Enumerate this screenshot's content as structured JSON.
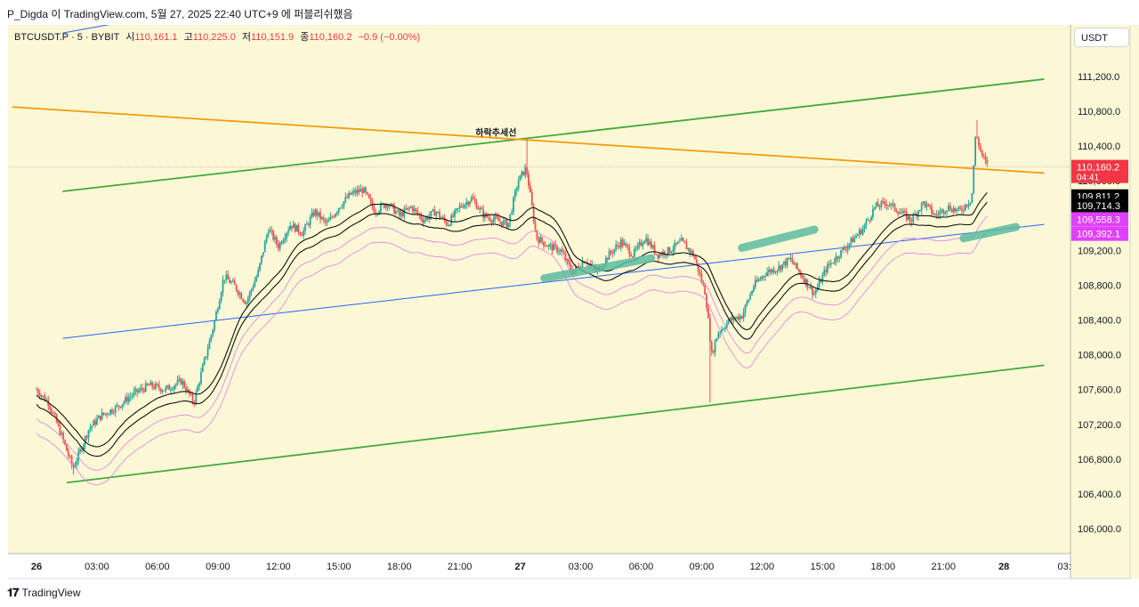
{
  "header": {
    "text": "P_Digda 이 TradingView.com, 5월 27, 2025 22:40 UTC+9 에 퍼블리쉬했음"
  },
  "legend": {
    "symbol": "BTCUSDT.P · 5 · BYBIT",
    "open_label": "시",
    "open": "110,161.1",
    "high_label": "고",
    "high": "110,225.0",
    "low_label": "저",
    "low": "110,151.9",
    "close_label": "종",
    "close": "110,160.2",
    "change": "−0.9 (−0.00%)"
  },
  "currency": "USDT",
  "annotation_text": "하락추세선",
  "footer": {
    "brand": "TradingView",
    "logo": "𝟏𝟕"
  },
  "colors": {
    "background": "#fcf8d6",
    "up": "#26a69a",
    "down": "#ef5350",
    "green_line": "#43a83b",
    "orange_line": "#f39c12",
    "blue_line": "#2962ff",
    "highlight": "#5dbb9f",
    "vwap": "#111111",
    "band": "#e07ae6",
    "last_price": "#f23645"
  },
  "chart_data": {
    "type": "candlestick",
    "price_axis": {
      "ticks": [
        106000,
        106400,
        106800,
        107200,
        107600,
        108000,
        108400,
        108800,
        109200,
        109600,
        110000,
        110400,
        110800,
        111200
      ],
      "tick_labels": [
        "106,000.0",
        "106,400.0",
        "106,800.0",
        "107,200.0",
        "107,600.0",
        "108,000.0",
        "108,400.0",
        "108,800.0",
        "109,200.0",
        "109,600.0",
        "110,000.0",
        "110,400.0",
        "110,800.0",
        "111,200.0"
      ],
      "ylim": [
        105800,
        111450
      ]
    },
    "time_axis": {
      "labels": [
        "26",
        "03:00",
        "06:00",
        "09:00",
        "12:00",
        "15:00",
        "18:00",
        "21:00",
        "27",
        "03:00",
        "06:00",
        "09:00",
        "12:00",
        "15:00",
        "18:00",
        "21:00",
        "28",
        "03:"
      ],
      "bold": [
        true,
        false,
        false,
        false,
        false,
        false,
        false,
        false,
        true,
        false,
        false,
        false,
        false,
        false,
        false,
        false,
        true,
        false
      ],
      "hours": [
        0,
        3,
        6,
        9,
        12,
        15,
        18,
        21,
        24,
        27,
        30,
        33,
        36,
        39,
        42,
        45,
        48,
        51
      ]
    },
    "price_tags": [
      {
        "label": "110,160.2",
        "sub": "04:41",
        "price": 110160,
        "bg": "#f23645",
        "fg": "#ffffff"
      },
      {
        "label": "109,811.2",
        "price": 109811,
        "bg": "#000000",
        "fg": "#ffffff"
      },
      {
        "label": "109,714.3",
        "price": 109714,
        "bg": "#000000",
        "fg": "#ffffff"
      },
      {
        "label": "109,558.3",
        "price": 109558,
        "bg": "#e040fb",
        "fg": "#ffffff"
      },
      {
        "label": "109,392.1",
        "price": 109392,
        "bg": "#e040fb",
        "fg": "#ffffff"
      }
    ],
    "close_path": [
      [
        0,
        107600
      ],
      [
        0.6,
        107450
      ],
      [
        1.2,
        107100
      ],
      [
        1.8,
        106700
      ],
      [
        2.1,
        106850
      ],
      [
        2.6,
        107150
      ],
      [
        3.2,
        107300
      ],
      [
        4.0,
        107400
      ],
      [
        4.8,
        107550
      ],
      [
        5.6,
        107650
      ],
      [
        6.4,
        107600
      ],
      [
        7.2,
        107700
      ],
      [
        7.8,
        107450
      ],
      [
        8.3,
        107900
      ],
      [
        8.8,
        108350
      ],
      [
        9.3,
        108900
      ],
      [
        9.8,
        108800
      ],
      [
        10.4,
        108600
      ],
      [
        11.0,
        108950
      ],
      [
        11.5,
        109450
      ],
      [
        12.0,
        109250
      ],
      [
        12.6,
        109500
      ],
      [
        13.2,
        109400
      ],
      [
        13.8,
        109650
      ],
      [
        14.4,
        109500
      ],
      [
        15.0,
        109700
      ],
      [
        15.6,
        109850
      ],
      [
        16.2,
        109900
      ],
      [
        16.8,
        109650
      ],
      [
        17.4,
        109750
      ],
      [
        18.0,
        109600
      ],
      [
        18.6,
        109700
      ],
      [
        19.2,
        109550
      ],
      [
        19.8,
        109650
      ],
      [
        20.4,
        109500
      ],
      [
        21.0,
        109700
      ],
      [
        21.6,
        109800
      ],
      [
        22.2,
        109600
      ],
      [
        22.8,
        109550
      ],
      [
        23.4,
        109500
      ],
      [
        23.9,
        110000
      ],
      [
        24.3,
        110150
      ],
      [
        24.8,
        109350
      ],
      [
        25.4,
        109250
      ],
      [
        26.0,
        109200
      ],
      [
        26.6,
        108950
      ],
      [
        27.2,
        109100
      ],
      [
        27.8,
        108950
      ],
      [
        28.4,
        109150
      ],
      [
        29.0,
        109300
      ],
      [
        29.6,
        109150
      ],
      [
        30.2,
        109350
      ],
      [
        30.8,
        109150
      ],
      [
        31.4,
        109200
      ],
      [
        32.0,
        109300
      ],
      [
        32.6,
        109150
      ],
      [
        33.2,
        108700
      ],
      [
        33.5,
        108000
      ],
      [
        33.8,
        108250
      ],
      [
        34.4,
        108400
      ],
      [
        35.0,
        108450
      ],
      [
        35.6,
        108800
      ],
      [
        36.2,
        108950
      ],
      [
        36.8,
        109000
      ],
      [
        37.4,
        109100
      ],
      [
        38.0,
        108900
      ],
      [
        38.6,
        108700
      ],
      [
        39.2,
        109000
      ],
      [
        39.8,
        109150
      ],
      [
        40.4,
        109300
      ],
      [
        41.0,
        109450
      ],
      [
        41.6,
        109700
      ],
      [
        42.2,
        109750
      ],
      [
        42.8,
        109650
      ],
      [
        43.4,
        109550
      ],
      [
        44.0,
        109750
      ],
      [
        44.6,
        109600
      ],
      [
        45.2,
        109700
      ],
      [
        45.8,
        109650
      ],
      [
        46.4,
        109800
      ],
      [
        46.6,
        110550
      ],
      [
        46.9,
        110300
      ],
      [
        47.2,
        110160
      ]
    ],
    "extreme_wicks": [
      {
        "hour": 1.8,
        "low": 106620
      },
      {
        "hour": 33.4,
        "low": 107450
      },
      {
        "hour": 24.3,
        "high": 110480
      },
      {
        "hour": 46.7,
        "high": 110700
      }
    ],
    "lines": [
      {
        "name": "green-upper",
        "color": "#43a83b",
        "from": [
          1.3,
          109880
        ],
        "to": [
          50,
          111170
        ]
      },
      {
        "name": "green-lower",
        "color": "#43a83b",
        "from": [
          1.5,
          106530
        ],
        "to": [
          50,
          107880
        ]
      },
      {
        "name": "orange-downtrend",
        "color": "#f39c12",
        "from": [
          -1.2,
          110850
        ],
        "to": [
          50,
          110090
        ]
      },
      {
        "name": "blue-channel-low",
        "color": "#2962ff",
        "from": [
          1.3,
          108190
        ],
        "to": [
          50,
          109500
        ]
      },
      {
        "name": "blue-channel-high",
        "color": "#2962ff",
        "from": [
          1.3,
          111700
        ],
        "to": [
          15,
          112280
        ]
      }
    ],
    "highlights": [
      {
        "from": [
          25.2,
          108880
        ],
        "to": [
          30.5,
          109110
        ]
      },
      {
        "from": [
          35.0,
          109230
        ],
        "to": [
          38.6,
          109440
        ]
      },
      {
        "from": [
          46.0,
          109340
        ],
        "to": [
          48.6,
          109470
        ]
      }
    ]
  }
}
